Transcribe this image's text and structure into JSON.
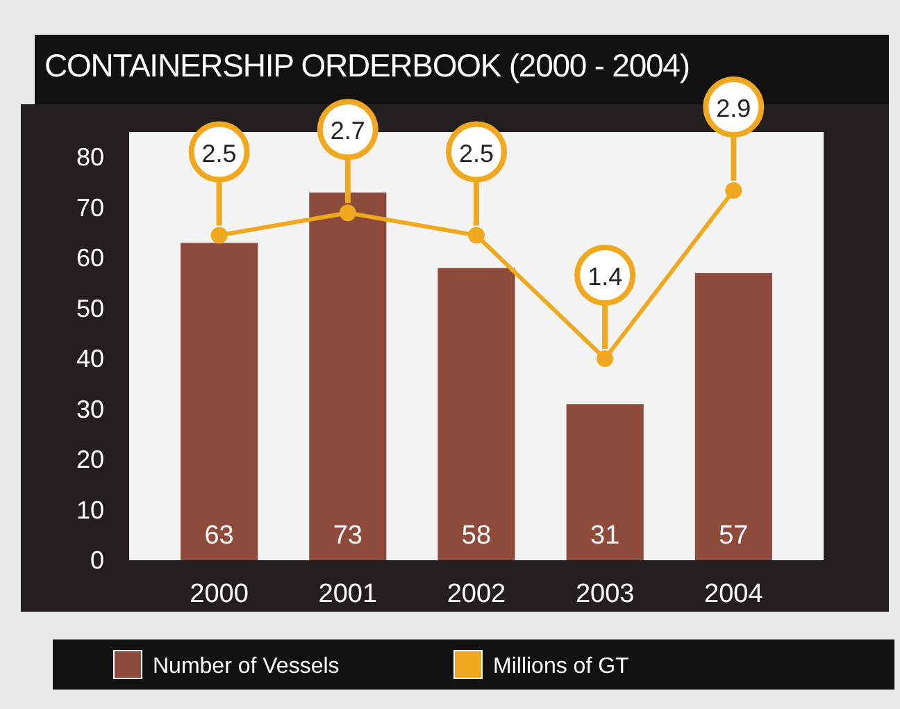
{
  "chart_data": {
    "type": "bar",
    "title": "CONTAINERSHIP ORDERBOOK (2000 - 2004)",
    "categories": [
      "2000",
      "2001",
      "2002",
      "2003",
      "2004"
    ],
    "series": [
      {
        "name": "Number of Vessels",
        "type": "bar",
        "color": "#8e4b3c",
        "values": [
          63,
          73,
          58,
          31,
          57
        ]
      },
      {
        "name": "Millions of GT",
        "type": "line",
        "axis": "y2",
        "color": "#f0a91e",
        "values": [
          2.5,
          2.7,
          2.5,
          1.4,
          2.9
        ]
      }
    ],
    "ylim": [
      0,
      85
    ],
    "yticks": [
      0,
      10,
      20,
      30,
      40,
      50,
      60,
      70,
      80
    ],
    "data_labels": true,
    "marker": "circle",
    "legend": "bottom",
    "grid": false
  }
}
